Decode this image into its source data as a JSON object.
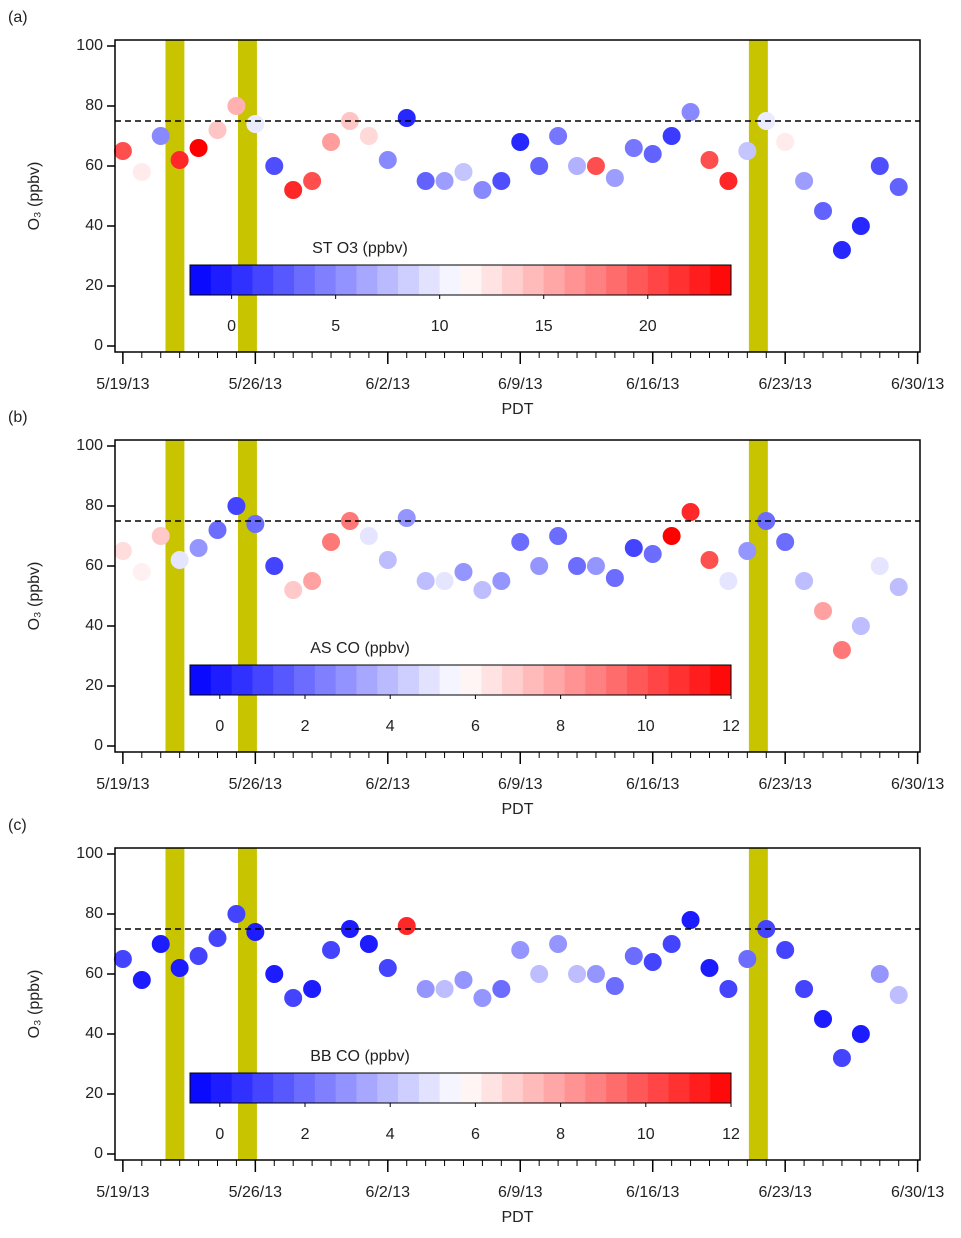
{
  "chart_data": [
    {
      "type": "scatter",
      "panel_label": "(a)",
      "y_label": "O₃ (ppbv)",
      "x_label": "PDT",
      "x": [
        "2013-05-19",
        "2013-05-20",
        "2013-05-21",
        "2013-05-22",
        "2013-05-23",
        "2013-05-24",
        "2013-05-25",
        "2013-05-26",
        "2013-05-27",
        "2013-05-28",
        "2013-05-29",
        "2013-05-30",
        "2013-05-31",
        "2013-06-01",
        "2013-06-02",
        "2013-06-03",
        "2013-06-04",
        "2013-06-05",
        "2013-06-06",
        "2013-06-07",
        "2013-06-08",
        "2013-06-09",
        "2013-06-10",
        "2013-06-11",
        "2013-06-12",
        "2013-06-13",
        "2013-06-14",
        "2013-06-15",
        "2013-06-16",
        "2013-06-17",
        "2013-06-18",
        "2013-06-19",
        "2013-06-20",
        "2013-06-21",
        "2013-06-22",
        "2013-06-23",
        "2013-06-24",
        "2013-06-25",
        "2013-06-26",
        "2013-06-27",
        "2013-06-28",
        "2013-06-29"
      ],
      "values": [
        65,
        58,
        70,
        62,
        66,
        72,
        80,
        74,
        60,
        52,
        55,
        68,
        75,
        70,
        62,
        76,
        55,
        55,
        58,
        52,
        55,
        68,
        60,
        70,
        60,
        60,
        56,
        66,
        64,
        70,
        78,
        62,
        55,
        65,
        75,
        68,
        55,
        45,
        32,
        40,
        60,
        53
      ],
      "color_label": "ST O3 (ppbv)",
      "color_values": [
        20,
        12,
        5,
        22,
        24,
        14,
        15,
        10,
        2,
        22,
        20,
        16,
        14,
        13,
        5,
        0,
        3,
        6,
        8,
        5,
        2,
        0,
        3,
        4,
        7,
        20,
        6,
        4,
        3,
        1,
        5,
        20,
        22,
        8,
        10,
        12,
        6,
        3,
        0,
        0,
        2,
        3
      ],
      "clim": [
        -2,
        24
      ],
      "cticks": [
        0,
        5,
        10,
        15,
        20
      ],
      "cmap": [
        "#0000ff",
        "#ffffff",
        "#ff0000"
      ],
      "ylim": [
        -2,
        102
      ],
      "yticks": [
        0,
        20,
        40,
        60,
        80,
        100
      ],
      "xlim": [
        "2013-05-18T14:00",
        "2013-06-30T03:00"
      ],
      "xticks": [
        {
          "value": "2013-05-19",
          "label": "5/19/13"
        },
        {
          "value": "2013-05-26",
          "label": "5/26/13"
        },
        {
          "value": "2013-06-02",
          "label": "6/2/13"
        },
        {
          "value": "2013-06-09",
          "label": "6/9/13"
        },
        {
          "value": "2013-06-16",
          "label": "6/16/13"
        },
        {
          "value": "2013-06-23",
          "label": "6/23/13"
        },
        {
          "value": "2013-06-30",
          "label": "6/30/13"
        }
      ],
      "reference_line": 75,
      "highlight_spans": [
        [
          "2013-05-21T06:00",
          "2013-05-22T06:00"
        ],
        [
          "2013-05-25T02:00",
          "2013-05-26T02:00"
        ],
        [
          "2013-06-21T02:00",
          "2013-06-22T02:00"
        ]
      ],
      "highlight_color": "#c8c400"
    },
    {
      "type": "scatter",
      "panel_label": "(b)",
      "y_label": "O₃ (ppbv)",
      "x_label": "PDT",
      "x": [
        "2013-05-19",
        "2013-05-20",
        "2013-05-21",
        "2013-05-22",
        "2013-05-23",
        "2013-05-24",
        "2013-05-25",
        "2013-05-26",
        "2013-05-27",
        "2013-05-28",
        "2013-05-29",
        "2013-05-30",
        "2013-05-31",
        "2013-06-01",
        "2013-06-02",
        "2013-06-03",
        "2013-06-04",
        "2013-06-05",
        "2013-06-06",
        "2013-06-07",
        "2013-06-08",
        "2013-06-09",
        "2013-06-10",
        "2013-06-11",
        "2013-06-12",
        "2013-06-13",
        "2013-06-14",
        "2013-06-15",
        "2013-06-16",
        "2013-06-17",
        "2013-06-18",
        "2013-06-19",
        "2013-06-20",
        "2013-06-21",
        "2013-06-22",
        "2013-06-23",
        "2013-06-24",
        "2013-06-25",
        "2013-06-26",
        "2013-06-27",
        "2013-06-28",
        "2013-06-29"
      ],
      "values": [
        65,
        58,
        70,
        62,
        66,
        72,
        80,
        74,
        60,
        52,
        55,
        68,
        75,
        70,
        62,
        76,
        55,
        55,
        58,
        52,
        55,
        68,
        60,
        70,
        60,
        60,
        56,
        66,
        64,
        70,
        78,
        62,
        55,
        65,
        75,
        68,
        55,
        45,
        32,
        40,
        60,
        53
      ],
      "color_label": "AS CO (ppbv)",
      "color_values": [
        6.5,
        6,
        7,
        5,
        3,
        2,
        1,
        2,
        1,
        7,
        8,
        9,
        9,
        5,
        4,
        3,
        4,
        5,
        3,
        4,
        3,
        2,
        3,
        2,
        2,
        3,
        2,
        1,
        2,
        12,
        11,
        10,
        5,
        3,
        2,
        2,
        4,
        8,
        9,
        4,
        5,
        4
      ],
      "clim": [
        -0.7,
        12
      ],
      "cticks": [
        0,
        2,
        4,
        6,
        8,
        10,
        12
      ],
      "cmap": [
        "#0000ff",
        "#ffffff",
        "#ff0000"
      ],
      "ylim": [
        -2,
        102
      ],
      "yticks": [
        0,
        20,
        40,
        60,
        80,
        100
      ],
      "xlim": [
        "2013-05-18T14:00",
        "2013-06-30T03:00"
      ],
      "xticks": [
        {
          "value": "2013-05-19",
          "label": "5/19/13"
        },
        {
          "value": "2013-05-26",
          "label": "5/26/13"
        },
        {
          "value": "2013-06-02",
          "label": "6/2/13"
        },
        {
          "value": "2013-06-09",
          "label": "6/9/13"
        },
        {
          "value": "2013-06-16",
          "label": "6/16/13"
        },
        {
          "value": "2013-06-23",
          "label": "6/23/13"
        },
        {
          "value": "2013-06-30",
          "label": "6/30/13"
        }
      ],
      "reference_line": 75,
      "highlight_spans": [
        [
          "2013-05-21T06:00",
          "2013-05-22T06:00"
        ],
        [
          "2013-05-25T02:00",
          "2013-05-26T02:00"
        ],
        [
          "2013-06-21T02:00",
          "2013-06-22T02:00"
        ]
      ],
      "highlight_color": "#c8c400"
    },
    {
      "type": "scatter",
      "panel_label": "(c)",
      "y_label": "O₃ (ppbv)",
      "x_label": "PDT",
      "x": [
        "2013-05-19",
        "2013-05-20",
        "2013-05-21",
        "2013-05-22",
        "2013-05-23",
        "2013-05-24",
        "2013-05-25",
        "2013-05-26",
        "2013-05-27",
        "2013-05-28",
        "2013-05-29",
        "2013-05-30",
        "2013-05-31",
        "2013-06-01",
        "2013-06-02",
        "2013-06-03",
        "2013-06-04",
        "2013-06-05",
        "2013-06-06",
        "2013-06-07",
        "2013-06-08",
        "2013-06-09",
        "2013-06-10",
        "2013-06-11",
        "2013-06-12",
        "2013-06-13",
        "2013-06-14",
        "2013-06-15",
        "2013-06-16",
        "2013-06-17",
        "2013-06-18",
        "2013-06-19",
        "2013-06-20",
        "2013-06-21",
        "2013-06-22",
        "2013-06-23",
        "2013-06-24",
        "2013-06-25",
        "2013-06-26",
        "2013-06-27",
        "2013-06-28",
        "2013-06-29"
      ],
      "values": [
        65,
        58,
        70,
        62,
        66,
        72,
        80,
        74,
        60,
        52,
        55,
        68,
        75,
        70,
        62,
        76,
        55,
        55,
        58,
        52,
        55,
        68,
        60,
        70,
        60,
        60,
        56,
        66,
        64,
        70,
        78,
        62,
        55,
        65,
        75,
        68,
        55,
        45,
        32,
        40,
        60,
        53
      ],
      "color_label": "BB CO (ppbv)",
      "color_values": [
        1,
        0,
        0,
        0,
        1,
        1,
        1,
        0,
        0,
        1,
        0,
        1,
        0,
        0,
        1,
        11,
        3,
        4,
        3,
        3,
        2,
        3,
        4,
        3,
        4,
        3,
        2,
        2,
        1,
        1,
        0,
        0,
        1,
        2,
        1,
        1,
        1,
        0,
        1,
        0,
        3,
        4
      ],
      "clim": [
        -0.7,
        12
      ],
      "cticks": [
        0,
        2,
        4,
        6,
        8,
        10,
        12
      ],
      "cmap": [
        "#0000ff",
        "#ffffff",
        "#ff0000"
      ],
      "ylim": [
        -2,
        102
      ],
      "yticks": [
        0,
        20,
        40,
        60,
        80,
        100
      ],
      "xlim": [
        "2013-05-18T14:00",
        "2013-06-30T03:00"
      ],
      "xticks": [
        {
          "value": "2013-05-19",
          "label": "5/19/13"
        },
        {
          "value": "2013-05-26",
          "label": "5/26/13"
        },
        {
          "value": "2013-06-02",
          "label": "6/2/13"
        },
        {
          "value": "2013-06-09",
          "label": "6/9/13"
        },
        {
          "value": "2013-06-16",
          "label": "6/16/13"
        },
        {
          "value": "2013-06-23",
          "label": "6/23/13"
        },
        {
          "value": "2013-06-30",
          "label": "6/30/13"
        }
      ],
      "reference_line": 75,
      "highlight_spans": [
        [
          "2013-05-21T06:00",
          "2013-05-22T06:00"
        ],
        [
          "2013-05-25T02:00",
          "2013-05-26T02:00"
        ],
        [
          "2013-06-21T02:00",
          "2013-06-22T02:00"
        ]
      ],
      "highlight_color": "#c8c400"
    }
  ]
}
